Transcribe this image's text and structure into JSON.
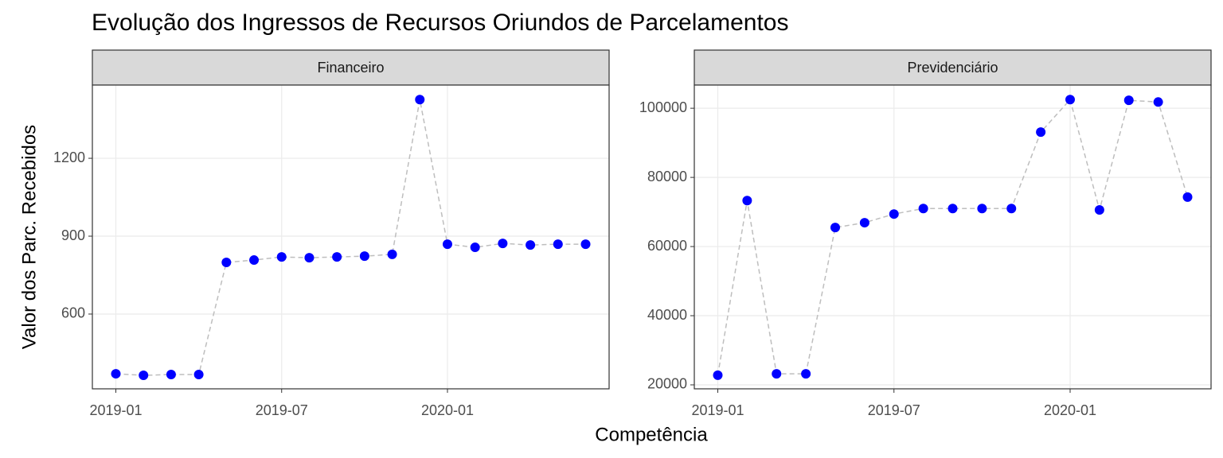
{
  "title": "Evolução dos Ingressos de Recursos Oriundos de Parcelamentos",
  "x_label": "Competência",
  "y_label": "Valor dos Parc. Recebidos",
  "chart_data": [
    {
      "type": "line",
      "facet": "Financeiro",
      "x": [
        "2019-01",
        "2019-02",
        "2019-03",
        "2019-04",
        "2019-05",
        "2019-06",
        "2019-07",
        "2019-08",
        "2019-09",
        "2019-10",
        "2019-11",
        "2019-12",
        "2020-01",
        "2020-02",
        "2020-03",
        "2020-04",
        "2020-05",
        "2020-06"
      ],
      "series": [
        {
          "color": "#0000ff",
          "line_color": "#bebebe",
          "values": [
            370,
            364,
            367,
            367,
            799,
            808,
            820,
            817,
            820,
            823,
            830,
            1426,
            869,
            857,
            872,
            866,
            869,
            869
          ]
        }
      ],
      "ylim": [
        312,
        1482
      ],
      "yticks": [
        600,
        900,
        1200
      ],
      "xticks": [
        "2019-01",
        "2019-07",
        "2020-01"
      ],
      "grid": true
    },
    {
      "type": "line",
      "facet": "Previdenciário",
      "x": [
        "2019-01",
        "2019-02",
        "2019-03",
        "2019-04",
        "2019-05",
        "2019-06",
        "2019-07",
        "2019-08",
        "2019-09",
        "2019-10",
        "2019-11",
        "2019-12",
        "2020-01",
        "2020-02",
        "2020-03",
        "2020-04",
        "2020-05"
      ],
      "series": [
        {
          "color": "#0000ff",
          "line_color": "#bebebe",
          "values": [
            22800,
            73300,
            23200,
            23200,
            65500,
            66900,
            69400,
            71000,
            71000,
            71000,
            71000,
            93100,
            102500,
            70600,
            102300,
            101800,
            74300
          ]
        }
      ],
      "ylim": [
        18850,
        106700
      ],
      "yticks": [
        20000,
        40000,
        60000,
        80000,
        100000
      ],
      "xticks": [
        "2019-01",
        "2019-07",
        "2020-01"
      ],
      "grid": true
    }
  ]
}
